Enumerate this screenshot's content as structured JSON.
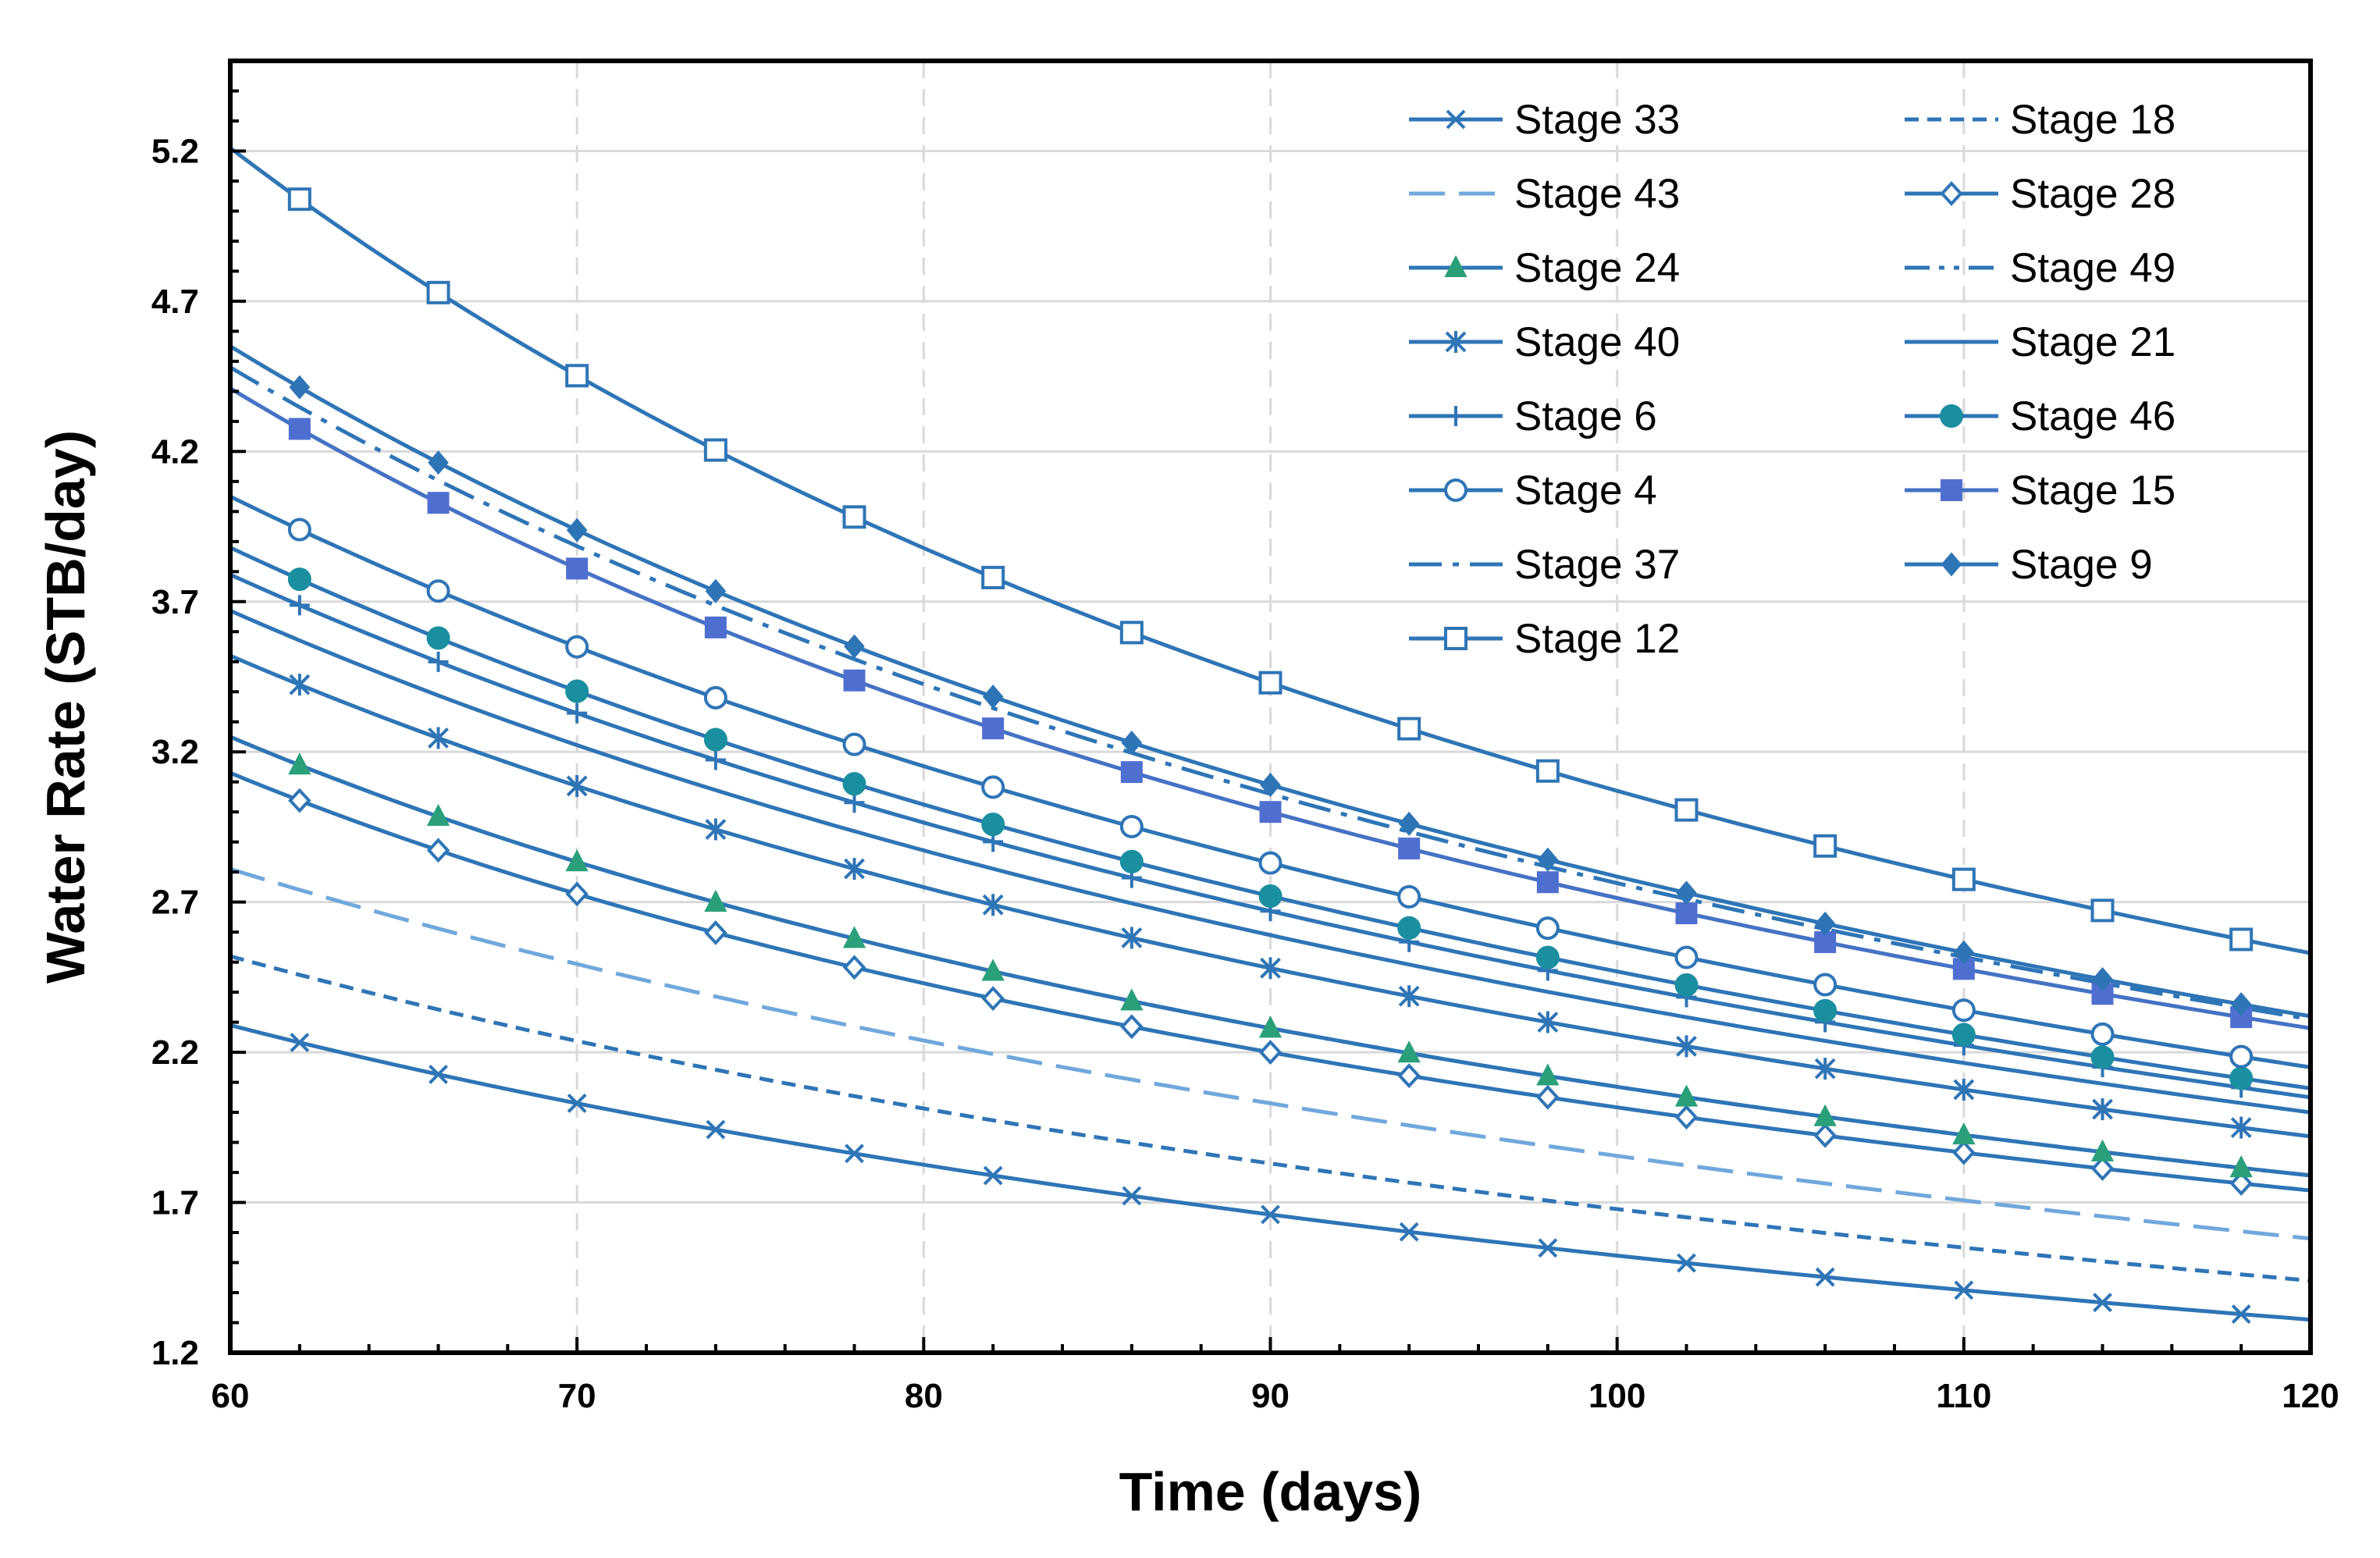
{
  "chart_data": {
    "type": "line",
    "title": "",
    "xlabel": "Time (days)",
    "ylabel": "Water Rate (STB/day)",
    "xlim": [
      60,
      120
    ],
    "ylim": [
      1.2,
      5.5
    ],
    "x_ticks": [
      60,
      70,
      80,
      90,
      100,
      110,
      120
    ],
    "y_ticks": [
      1.2,
      1.7,
      2.2,
      2.7,
      3.2,
      3.7,
      4.2,
      4.7,
      5.2
    ],
    "x_tick_labels": [
      "60",
      "70",
      "80",
      "90",
      "100",
      "110",
      "120"
    ],
    "y_tick_labels": [
      "1.2",
      "1.7",
      "2.2",
      "2.7",
      "3.2",
      "3.7",
      "4.2",
      "4.7",
      "5.2"
    ],
    "grid": true,
    "legend_position": "top-right",
    "marker_x": [
      62,
      66,
      70,
      74,
      78,
      82,
      86,
      90,
      94,
      98,
      102,
      106,
      110,
      114,
      118
    ],
    "series": [
      {
        "name": "Stage 33",
        "marker": "x",
        "dash": "solid",
        "color": "#2e75b6",
        "x": [
          60,
          90,
          120
        ],
        "y": [
          2.29,
          1.66,
          1.31
        ]
      },
      {
        "name": "Stage 18",
        "marker": "none",
        "dash": "short-dash",
        "color": "#2e75b6",
        "x": [
          60,
          90,
          120
        ],
        "y": [
          2.52,
          1.83,
          1.44
        ]
      },
      {
        "name": "Stage 43",
        "marker": "none",
        "dash": "long-dash",
        "color": "#6fa8dc",
        "x": [
          60,
          90,
          120
        ],
        "y": [
          2.81,
          2.03,
          1.58
        ]
      },
      {
        "name": "Stage 28",
        "marker": "diamond-open",
        "dash": "solid",
        "color": "#2e75b6",
        "x": [
          60,
          90,
          120
        ],
        "y": [
          3.13,
          2.2,
          1.74
        ]
      },
      {
        "name": "Stage 24",
        "marker": "triangle-filled",
        "dash": "solid",
        "color": "#2e75b6",
        "x": [
          60,
          90,
          120
        ],
        "y": [
          3.25,
          2.28,
          1.79
        ]
      },
      {
        "name": "Stage 49",
        "marker": "none",
        "dash": "dash-dot-dot",
        "color": "#2e75b6",
        "x": [
          60,
          90,
          120
        ],
        "y": [
          3.25,
          2.28,
          1.79
        ]
      },
      {
        "name": "Stage 40",
        "marker": "asterisk",
        "dash": "solid",
        "color": "#2e75b6",
        "x": [
          60,
          90,
          120
        ],
        "y": [
          3.52,
          2.48,
          1.92
        ]
      },
      {
        "name": "Stage 21",
        "marker": "none",
        "dash": "solid",
        "color": "#2e75b6",
        "x": [
          60,
          90,
          120
        ],
        "y": [
          3.67,
          2.59,
          2.0
        ]
      },
      {
        "name": "Stage 6",
        "marker": "plus",
        "dash": "solid",
        "color": "#2e75b6",
        "x": [
          60,
          90,
          120
        ],
        "y": [
          3.79,
          2.67,
          2.05
        ]
      },
      {
        "name": "Stage 46",
        "marker": "circle-filled",
        "dash": "solid",
        "color": "#2e75b6",
        "x": [
          60,
          90,
          120
        ],
        "y": [
          3.88,
          2.72,
          2.08
        ]
      },
      {
        "name": "Stage 4",
        "marker": "circle-open",
        "dash": "solid",
        "color": "#2e75b6",
        "x": [
          60,
          90,
          120
        ],
        "y": [
          4.05,
          2.83,
          2.15
        ]
      },
      {
        "name": "Stage 15",
        "marker": "square-filled",
        "dash": "solid",
        "color": "#4472c4",
        "x": [
          60,
          90,
          120
        ],
        "y": [
          4.41,
          3.0,
          2.28
        ]
      },
      {
        "name": "Stage 37",
        "marker": "none",
        "dash": "dash-dot",
        "color": "#2e75b6",
        "x": [
          60,
          90,
          120
        ],
        "y": [
          4.48,
          3.06,
          2.31
        ]
      },
      {
        "name": "Stage 9",
        "marker": "diamond-filled",
        "dash": "solid",
        "color": "#2e75b6",
        "x": [
          60,
          90,
          120
        ],
        "y": [
          4.55,
          3.09,
          2.32
        ]
      },
      {
        "name": "Stage 12",
        "marker": "square-open",
        "dash": "solid",
        "color": "#2e75b6",
        "x": [
          60,
          90,
          120
        ],
        "y": [
          5.21,
          3.43,
          2.53
        ]
      }
    ],
    "legend_order": [
      "Stage 33",
      "Stage 18",
      "Stage 43",
      "Stage 28",
      "Stage 24",
      "Stage 49",
      "Stage 40",
      "Stage 21",
      "Stage 6",
      "Stage 46",
      "Stage 4",
      "Stage 15",
      "Stage 37",
      "Stage 9",
      "Stage 12"
    ]
  }
}
